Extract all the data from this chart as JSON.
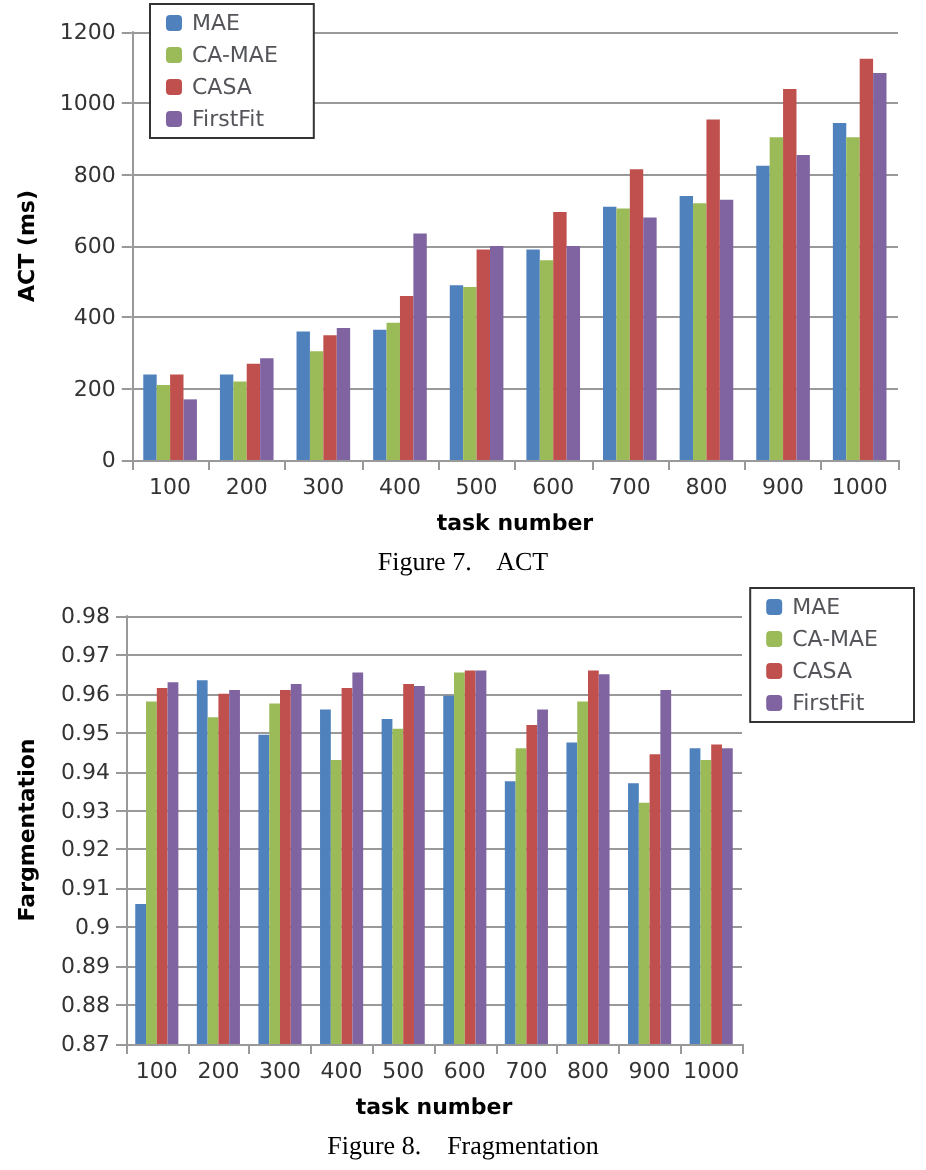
{
  "chart_data": [
    {
      "type": "bar",
      "title": "Figure 7.    ACT",
      "xlabel": "task number",
      "ylabel": "ACT (ms)",
      "categories": [
        "100",
        "200",
        "300",
        "400",
        "500",
        "600",
        "700",
        "800",
        "900",
        "1000"
      ],
      "series": [
        {
          "name": "MAE",
          "color": "#4f81bd",
          "values": [
            240,
            240,
            360,
            365,
            490,
            590,
            710,
            740,
            825,
            945
          ]
        },
        {
          "name": "CA-MAE",
          "color": "#9bbb59",
          "values": [
            210,
            220,
            305,
            385,
            485,
            560,
            705,
            720,
            905,
            905
          ]
        },
        {
          "name": "CASA",
          "color": "#c0504d",
          "values": [
            240,
            270,
            350,
            460,
            590,
            695,
            815,
            955,
            1040,
            1125
          ]
        },
        {
          "name": "FirstFit",
          "color": "#8064a2",
          "values": [
            170,
            285,
            370,
            635,
            600,
            600,
            680,
            730,
            855,
            1085
          ]
        }
      ],
      "ylim": [
        0,
        1200
      ],
      "yticks": [
        0,
        200,
        400,
        600,
        800,
        1000,
        1200
      ],
      "grid": "y",
      "legend": "top left"
    },
    {
      "type": "bar",
      "title": "Figure 8.    Fragmentation",
      "xlabel": "task number",
      "ylabel": "Fargmentation",
      "categories": [
        "100",
        "200",
        "300",
        "400",
        "500",
        "600",
        "700",
        "800",
        "900",
        "1000"
      ],
      "series": [
        {
          "name": "MAE",
          "color": "#4f81bd",
          "values": [
            0.906,
            0.9635,
            0.9495,
            0.956,
            0.9535,
            0.9595,
            0.9375,
            0.9475,
            0.937,
            0.946
          ]
        },
        {
          "name": "CA-MAE",
          "color": "#9bbb59",
          "values": [
            0.958,
            0.954,
            0.9575,
            0.943,
            0.951,
            0.9655,
            0.946,
            0.958,
            0.932,
            0.943
          ]
        },
        {
          "name": "CASA",
          "color": "#c0504d",
          "values": [
            0.9615,
            0.96,
            0.961,
            0.9615,
            0.9625,
            0.966,
            0.952,
            0.966,
            0.9445,
            0.947
          ]
        },
        {
          "name": "FirstFit",
          "color": "#8064a2",
          "values": [
            0.963,
            0.961,
            0.9625,
            0.9655,
            0.962,
            0.966,
            0.956,
            0.965,
            0.961,
            0.946
          ]
        }
      ],
      "ylim": [
        0.87,
        0.98
      ],
      "yticks": [
        0.87,
        0.88,
        0.89,
        0.9,
        0.91,
        0.92,
        0.93,
        0.94,
        0.95,
        0.96,
        0.97,
        0.98
      ],
      "grid": "y",
      "legend": "top right"
    }
  ]
}
